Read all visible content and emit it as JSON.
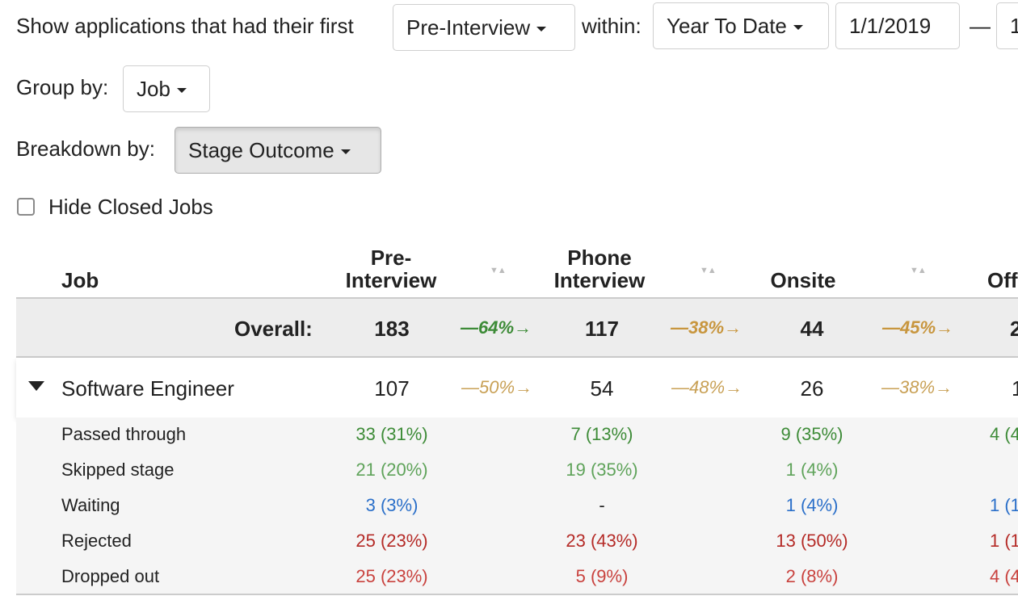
{
  "filters": {
    "show_label": "Show applications that had their first",
    "stage_value": "Pre-Interview",
    "within_label": "within:",
    "range_value": "Year To Date",
    "start_date": "1/1/2019",
    "date_separator": "—",
    "end_date_partial": "1",
    "group_label": "Group by:",
    "group_value": "Job",
    "breakdown_label": "Breakdown by:",
    "breakdown_value": "Stage Outcome",
    "hide_closed_label": "Hide Closed Jobs",
    "hide_closed_checked": false
  },
  "table": {
    "job_header": "Job",
    "stages": [
      {
        "line1": "Pre-",
        "line2": "Interview"
      },
      {
        "line1": "Phone",
        "line2": "Interview"
      },
      {
        "line1": "",
        "line2": "Onsite"
      },
      {
        "line1": "",
        "line2": "Off"
      }
    ],
    "overall": {
      "label": "Overall:",
      "counts": [
        "183",
        "117",
        "44",
        "2"
      ],
      "conversions": [
        "—64%→",
        "—38%→",
        "—45%→"
      ],
      "conversion_colors": [
        "#3d8b37",
        "#c8963e",
        "#c8963e"
      ]
    },
    "job": {
      "name": "Software Engineer",
      "counts": [
        "107",
        "54",
        "26",
        "1"
      ],
      "conversions": [
        "—50%→",
        "—48%→",
        "—38%→"
      ],
      "conversion_color": "#c8a055"
    },
    "breakdown": [
      {
        "label": "Passed through",
        "color": "#3d8b37",
        "values": [
          "33 (31%)",
          "7 (13%)",
          "9 (35%)",
          "4 (4"
        ]
      },
      {
        "label": "Skipped stage",
        "color": "#5fa35a",
        "values": [
          "21 (20%)",
          "19 (35%)",
          "1 (4%)",
          ""
        ]
      },
      {
        "label": "Waiting",
        "color": "#2a6fc9",
        "values": [
          "3 (3%)",
          "-",
          "1 (4%)",
          "1 (1"
        ]
      },
      {
        "label": "Rejected",
        "color": "#b52b27",
        "values": [
          "25 (23%)",
          "23 (43%)",
          "13 (50%)",
          "1 (1"
        ]
      },
      {
        "label": "Dropped out",
        "color": "#c9423e",
        "values": [
          "25 (23%)",
          "5 (9%)",
          "2 (8%)",
          "4 (4"
        ]
      }
    ]
  }
}
